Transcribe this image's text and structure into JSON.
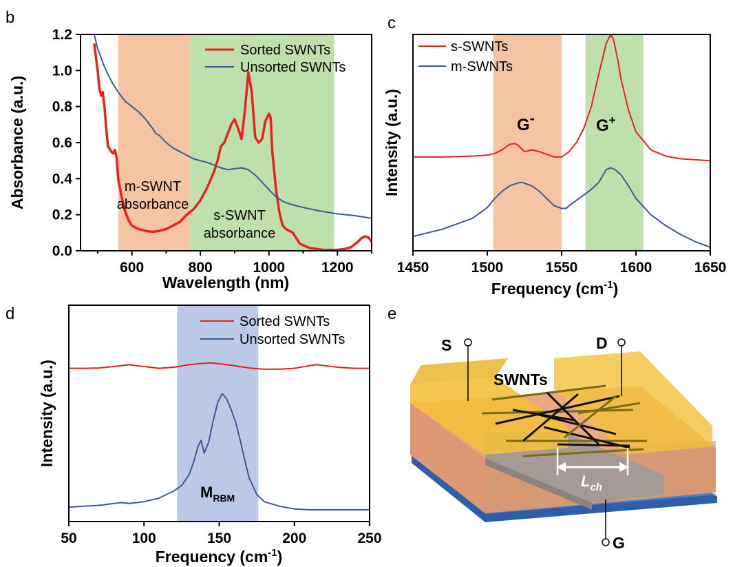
{
  "colors": {
    "sorted": "#e8211d",
    "unsorted": "#3a5b92",
    "m_band": "#f5c4a3",
    "s_band": "#bde0ac",
    "rbm_band": "#b9c9e6",
    "gold": "#f5c325",
    "substrate": "#3d6fc0"
  },
  "panels": {
    "b": {
      "letter": "b",
      "m_label_1": "m-SWNT",
      "m_label_2": "absorbance",
      "s_label_1": "s-SWNT",
      "s_label_2": "absorbance"
    },
    "c": {
      "letter": "c",
      "g_minus": "G",
      "g_minus_sup": "-",
      "g_plus": "G",
      "g_plus_sup": "+"
    },
    "d": {
      "letter": "d",
      "rbm_main": "M",
      "rbm_sub": "RBM"
    },
    "e": {
      "letter": "e",
      "source": "S",
      "drain": "D",
      "gate": "G",
      "swnts": "SWNTs",
      "lch_main": "L",
      "lch_sub": "ch"
    }
  },
  "chart_data": [
    {
      "panel": "b",
      "type": "line",
      "xlabel": "Wavelength (nm)",
      "ylabel": "Absorbance (a.u.)",
      "xlim": [
        450,
        1300
      ],
      "ylim": [
        0,
        1.2
      ],
      "xticks": [
        "600",
        "800",
        "1000",
        "1200"
      ],
      "yticks": [
        "0.0",
        "0.2",
        "0.4",
        "0.6",
        "0.8",
        "1.0",
        "1.2"
      ],
      "bands": [
        {
          "label": "m-SWNT absorbance",
          "from": 560,
          "to": 770
        },
        {
          "label": "s-SWNT absorbance",
          "from": 770,
          "to": 1190
        }
      ],
      "legend": {
        "placement": "top-right",
        "entries": [
          "Sorted SWNTs",
          "Unsorted SWNTs"
        ]
      },
      "series": [
        {
          "name": "Sorted SWNTs",
          "x": [
            490,
            500,
            505,
            510,
            515,
            520,
            525,
            530,
            540,
            545,
            550,
            555,
            560,
            570,
            580,
            590,
            600,
            620,
            640,
            660,
            680,
            700,
            720,
            740,
            760,
            780,
            800,
            820,
            840,
            850,
            860,
            870,
            880,
            890,
            900,
            910,
            920,
            930,
            940,
            950,
            960,
            970,
            980,
            990,
            1000,
            1005,
            1010,
            1020,
            1030,
            1040,
            1050,
            1060,
            1070,
            1080,
            1090,
            1100,
            1120,
            1140,
            1160,
            1180,
            1200,
            1220,
            1240,
            1260,
            1270,
            1280,
            1290,
            1300
          ],
          "y": [
            1.15,
            1.0,
            0.9,
            0.86,
            0.88,
            0.8,
            0.68,
            0.58,
            0.55,
            0.54,
            0.56,
            0.52,
            0.4,
            0.3,
            0.22,
            0.17,
            0.14,
            0.12,
            0.11,
            0.105,
            0.11,
            0.12,
            0.14,
            0.16,
            0.2,
            0.23,
            0.28,
            0.35,
            0.44,
            0.5,
            0.58,
            0.6,
            0.65,
            0.7,
            0.73,
            0.68,
            0.62,
            0.78,
            0.99,
            0.88,
            0.63,
            0.6,
            0.62,
            0.72,
            0.76,
            0.74,
            0.55,
            0.35,
            0.22,
            0.14,
            0.12,
            0.11,
            0.1,
            0.07,
            0.04,
            0.03,
            0.015,
            0.01,
            0.005,
            0.005,
            0.005,
            0.01,
            0.02,
            0.05,
            0.07,
            0.08,
            0.075,
            0.05
          ]
        },
        {
          "name": "Unsorted SWNTs",
          "x": [
            490,
            500,
            520,
            540,
            560,
            580,
            600,
            620,
            640,
            660,
            670,
            680,
            700,
            720,
            740,
            760,
            780,
            800,
            820,
            840,
            860,
            880,
            900,
            920,
            940,
            960,
            980,
            1000,
            1020,
            1040,
            1060,
            1080,
            1100,
            1150,
            1200,
            1250,
            1300
          ],
          "y": [
            1.2,
            1.12,
            1.02,
            0.94,
            0.88,
            0.83,
            0.8,
            0.77,
            0.73,
            0.68,
            0.65,
            0.64,
            0.6,
            0.57,
            0.55,
            0.53,
            0.51,
            0.5,
            0.49,
            0.475,
            0.46,
            0.45,
            0.455,
            0.46,
            0.45,
            0.42,
            0.38,
            0.34,
            0.3,
            0.275,
            0.26,
            0.25,
            0.24,
            0.22,
            0.205,
            0.195,
            0.18
          ]
        }
      ]
    },
    {
      "panel": "c",
      "type": "line",
      "xlabel": "Frequency (cm",
      "xlabel_sup": "-1",
      "xlabel_close": ")",
      "ylabel": "Intensity (a.u.)",
      "xlim": [
        1450,
        1650
      ],
      "ylim": [
        0,
        1.2
      ],
      "xticks": [
        "1450",
        "1500",
        "1550",
        "1600",
        "1650"
      ],
      "bands": [
        {
          "label": "G-",
          "from": 1504,
          "to": 1550
        },
        {
          "label": "G+",
          "from": 1566,
          "to": 1605
        }
      ],
      "legend": {
        "placement": "top-left",
        "entries": [
          "s-SWNTs",
          "m-SWNTs"
        ]
      },
      "series": [
        {
          "name": "s-SWNTs",
          "x": [
            1450,
            1470,
            1490,
            1500,
            1505,
            1510,
            1515,
            1518,
            1520,
            1525,
            1530,
            1535,
            1540,
            1545,
            1550,
            1555,
            1560,
            1565,
            1570,
            1575,
            1580,
            1583,
            1585,
            1588,
            1590,
            1595,
            1600,
            1610,
            1620,
            1630,
            1640,
            1650
          ],
          "y": [
            0.52,
            0.52,
            0.525,
            0.53,
            0.54,
            0.56,
            0.59,
            0.595,
            0.59,
            0.55,
            0.56,
            0.55,
            0.535,
            0.52,
            0.52,
            0.55,
            0.6,
            0.68,
            0.8,
            0.98,
            1.15,
            1.2,
            1.17,
            1.05,
            0.95,
            0.78,
            0.66,
            0.56,
            0.525,
            0.51,
            0.505,
            0.5
          ]
        },
        {
          "name": "m-SWNTs",
          "x": [
            1450,
            1470,
            1490,
            1500,
            1505,
            1510,
            1515,
            1520,
            1523,
            1525,
            1530,
            1535,
            1540,
            1545,
            1550,
            1553,
            1555,
            1560,
            1565,
            1570,
            1575,
            1580,
            1583,
            1586,
            1590,
            1595,
            1600,
            1610,
            1620,
            1630,
            1640,
            1650
          ],
          "y": [
            0.08,
            0.12,
            0.18,
            0.24,
            0.29,
            0.33,
            0.36,
            0.375,
            0.38,
            0.375,
            0.36,
            0.33,
            0.29,
            0.25,
            0.235,
            0.235,
            0.25,
            0.28,
            0.31,
            0.34,
            0.38,
            0.45,
            0.46,
            0.45,
            0.42,
            0.36,
            0.29,
            0.2,
            0.14,
            0.09,
            0.05,
            0.02
          ]
        }
      ]
    },
    {
      "panel": "d",
      "type": "line",
      "xlabel": "Frequency (cm",
      "xlabel_sup": "-1",
      "xlabel_close": ")",
      "ylabel": "Intensity (a.u.)",
      "xlim": [
        50,
        250
      ],
      "ylim": [
        0,
        1.2
      ],
      "xticks": [
        "50",
        "100",
        "150",
        "200",
        "250"
      ],
      "bands": [
        {
          "label": "M RBM",
          "from": 122,
          "to": 176
        }
      ],
      "legend": {
        "placement": "top-right",
        "entries": [
          "Sorted SWNTs",
          "Unsorted SWNTs"
        ]
      },
      "series": [
        {
          "name": "Sorted SWNTs",
          "x": [
            50,
            60,
            70,
            80,
            90,
            100,
            110,
            120,
            130,
            140,
            145,
            150,
            160,
            170,
            180,
            190,
            200,
            210,
            215,
            220,
            230,
            240,
            250
          ],
          "y": [
            0.85,
            0.85,
            0.852,
            0.86,
            0.87,
            0.86,
            0.85,
            0.856,
            0.87,
            0.878,
            0.88,
            0.875,
            0.865,
            0.852,
            0.845,
            0.845,
            0.85,
            0.865,
            0.87,
            0.865,
            0.855,
            0.85,
            0.85
          ]
        },
        {
          "name": "Unsorted SWNTs",
          "x": [
            50,
            60,
            70,
            80,
            85,
            90,
            100,
            110,
            120,
            125,
            130,
            133,
            136,
            138,
            140,
            143,
            146,
            149,
            152,
            155,
            158,
            161,
            164,
            167,
            170,
            175,
            180,
            190,
            200,
            210,
            220,
            230,
            240,
            250
          ],
          "y": [
            0.08,
            0.085,
            0.09,
            0.1,
            0.105,
            0.1,
            0.11,
            0.13,
            0.17,
            0.2,
            0.26,
            0.33,
            0.42,
            0.45,
            0.38,
            0.44,
            0.56,
            0.66,
            0.71,
            0.68,
            0.62,
            0.55,
            0.45,
            0.34,
            0.24,
            0.15,
            0.11,
            0.085,
            0.07,
            0.065,
            0.065,
            0.065,
            0.065,
            0.065
          ]
        }
      ]
    }
  ]
}
